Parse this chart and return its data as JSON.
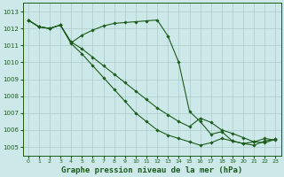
{
  "background_color": "#cde8e8",
  "grid_color": "#aacccc",
  "line_color": "#1a5c1a",
  "marker_color": "#1a5c1a",
  "xlabel": "Graphe pression niveau de la mer (hPa)",
  "xlabel_fontsize": 6.5,
  "ylim": [
    1004.5,
    1013.5
  ],
  "xlim": [
    -0.5,
    23.5
  ],
  "yticks": [
    1005,
    1006,
    1007,
    1008,
    1009,
    1010,
    1011,
    1012,
    1013
  ],
  "xticks": [
    0,
    1,
    2,
    3,
    4,
    5,
    6,
    7,
    8,
    9,
    10,
    11,
    12,
    13,
    14,
    15,
    16,
    17,
    18,
    19,
    20,
    21,
    22,
    23
  ],
  "series1": [
    1012.5,
    1012.1,
    1012.0,
    1012.2,
    1011.15,
    1011.6,
    1011.9,
    1012.15,
    1012.3,
    1012.35,
    1012.4,
    1012.45,
    1012.5,
    1011.55,
    1010.0,
    1007.1,
    1006.5,
    1005.75,
    1005.9,
    1005.35,
    1005.2,
    1005.3,
    1005.5,
    1005.4
  ],
  "series2": [
    1012.5,
    1012.1,
    1012.0,
    1012.2,
    1011.2,
    1010.8,
    1010.3,
    1009.8,
    1009.3,
    1008.8,
    1008.3,
    1007.8,
    1007.3,
    1006.9,
    1006.5,
    1006.2,
    1006.7,
    1006.45,
    1006.0,
    1005.8,
    1005.55,
    1005.3,
    1005.25,
    1005.45
  ],
  "series3": [
    1012.5,
    1012.1,
    1012.0,
    1012.2,
    1011.1,
    1010.5,
    1009.8,
    1009.1,
    1008.4,
    1007.7,
    1007.0,
    1006.5,
    1006.0,
    1005.7,
    1005.5,
    1005.3,
    1005.1,
    1005.25,
    1005.5,
    1005.35,
    1005.2,
    1005.1,
    1005.35,
    1005.45
  ]
}
